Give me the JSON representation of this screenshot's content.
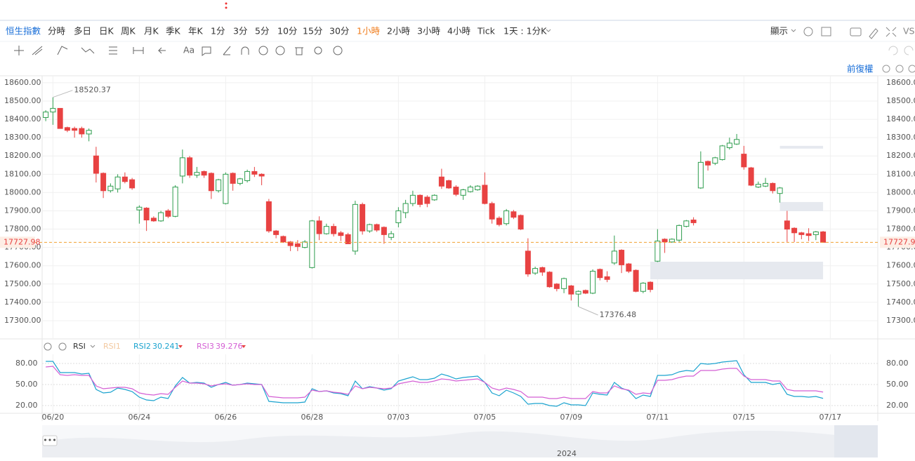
{
  "toolbar": {
    "symbol": "恒生指數",
    "periods": [
      "分時",
      "多日",
      "日K",
      "周K",
      "月K",
      "季K",
      "年K",
      "1分",
      "3分",
      "5分",
      "10分",
      "15分",
      "30分",
      "1小時",
      "2小時",
      "3小時",
      "4小時",
      "Tick",
      "1天 : 1分K"
    ],
    "selected_period": 13,
    "display": "顯示",
    "compare": "VS",
    "adjust": "前復權",
    "navigator_year": "2024"
  },
  "chart_data": [
    {
      "type": "candlestick",
      "up_color": "#2e9d4e",
      "down_color": "#e84242",
      "open": [
        18410,
        18440,
        18460,
        18355,
        18350,
        18350,
        18320,
        18200,
        18105,
        18010,
        18020,
        18085,
        18070,
        17905,
        17915,
        17860,
        17845,
        17900,
        17870,
        18090,
        18190,
        18095,
        18115,
        18105,
        18010,
        17940,
        18105,
        18050,
        18065,
        18115,
        18100,
        17950,
        17790,
        17760,
        17730,
        17720,
        17700,
        17590,
        17845,
        17775,
        17815,
        17780,
        17770,
        17680,
        17935,
        17790,
        17825,
        17810,
        17755,
        17835,
        17890,
        17940,
        17985,
        17975,
        17960,
        18085,
        18065,
        18030,
        17985,
        18005,
        18015,
        18040,
        17940,
        17860,
        17830,
        17895,
        17875,
        17680,
        17560,
        17590,
        17565,
        17500,
        17475,
        17490,
        17445,
        17465,
        17450,
        17580,
        17540,
        17615,
        17685,
        17610,
        17575,
        17460,
        17510,
        17625,
        17745,
        17730,
        17740,
        17815,
        17850,
        18025,
        18170,
        18160,
        18180,
        18245,
        18265,
        18210,
        18135,
        18030,
        18035,
        18050,
        17995,
        17845,
        17805,
        17780,
        17775,
        17770,
        17785
      ],
      "high": [
        18450,
        18520.37,
        18460,
        18360,
        18360,
        18360,
        18350,
        18250,
        18110,
        18050,
        18100,
        18110,
        18080,
        17930,
        17920,
        17870,
        17900,
        17910,
        18040,
        18235,
        18200,
        18140,
        18120,
        18110,
        18075,
        18110,
        18110,
        18080,
        18125,
        18140,
        18105,
        17965,
        17795,
        17765,
        17735,
        17740,
        17740,
        17850,
        17870,
        17830,
        17830,
        17790,
        17780,
        17955,
        17945,
        17830,
        17830,
        17815,
        17790,
        17920,
        17960,
        18010,
        17990,
        17985,
        17990,
        18130,
        18070,
        18040,
        18020,
        18040,
        18040,
        18110,
        17950,
        17870,
        17910,
        17905,
        17880,
        17750,
        17595,
        17595,
        17570,
        17505,
        17535,
        17495,
        17465,
        17470,
        17580,
        17585,
        17570,
        17765,
        17690,
        17615,
        17580,
        17510,
        17515,
        17800,
        17750,
        17750,
        17825,
        17850,
        17865,
        18225,
        18175,
        18195,
        18260,
        18300,
        18320,
        18255,
        18140,
        18060,
        18080,
        18055,
        18030,
        17900,
        17810,
        17785,
        17805,
        17790,
        17790
      ],
      "low": [
        18390,
        18370,
        18350,
        18330,
        18300,
        18300,
        18280,
        18055,
        17970,
        18000,
        18000,
        18050,
        18015,
        17830,
        17790,
        17840,
        17840,
        17860,
        17865,
        18050,
        18080,
        18080,
        18080,
        17965,
        18000,
        17935,
        18010,
        18040,
        18055,
        18085,
        18040,
        17780,
        17750,
        17725,
        17680,
        17680,
        17695,
        17585,
        17740,
        17770,
        17760,
        17735,
        17720,
        17660,
        17770,
        17780,
        17785,
        17720,
        17740,
        17810,
        17860,
        17925,
        17920,
        17920,
        17955,
        18020,
        18020,
        17980,
        17960,
        18000,
        18010,
        17935,
        17830,
        17815,
        17820,
        17855,
        17795,
        17540,
        17550,
        17545,
        17480,
        17460,
        17450,
        17410,
        17376.48,
        17445,
        17445,
        17520,
        17510,
        17605,
        17560,
        17560,
        17455,
        17450,
        17455,
        17620,
        17670,
        17725,
        17730,
        17810,
        17820,
        18020,
        18120,
        18150,
        18175,
        18235,
        18260,
        18125,
        18035,
        18025,
        18030,
        17995,
        17945,
        17730,
        17730,
        17745,
        17735,
        17740,
        17725
      ],
      "close": [
        18440,
        18460,
        18350,
        18340,
        18340,
        18320,
        18340,
        18105,
        18010,
        18035,
        18085,
        18060,
        18025,
        17920,
        17850,
        17845,
        17890,
        17870,
        18030,
        18190,
        18095,
        18110,
        18095,
        18010,
        18070,
        18100,
        18050,
        18075,
        18115,
        18100,
        18090,
        17790,
        17770,
        17730,
        17710,
        17705,
        17730,
        17845,
        17775,
        17815,
        17775,
        17765,
        17720,
        17935,
        17790,
        17825,
        17795,
        17770,
        17775,
        17900,
        17940,
        17985,
        17935,
        17940,
        17985,
        18035,
        18025,
        17990,
        18015,
        18030,
        18035,
        17940,
        17855,
        17825,
        17900,
        17865,
        17800,
        17555,
        17585,
        17565,
        17485,
        17475,
        17530,
        17445,
        17460,
        17450,
        17570,
        17535,
        17525,
        17680,
        17605,
        17570,
        17460,
        17505,
        17470,
        17735,
        17730,
        17745,
        17820,
        17845,
        17835,
        18165,
        18150,
        18190,
        18255,
        18270,
        18290,
        18140,
        18040,
        18045,
        18050,
        18010,
        18025,
        17800,
        17780,
        17770,
        17765,
        17785,
        17727.98
      ],
      "zones": [
        {
          "start": 102,
          "low": 18240,
          "high": 18255
        },
        {
          "start": 102,
          "low": 17898,
          "high": 17948
        },
        {
          "start": 84,
          "low": 17526,
          "high": 17622
        }
      ],
      "ylim": [
        17204,
        18638
      ],
      "yticks": [
        {
          "value": 17300,
          "label": "17300.00"
        },
        {
          "value": 17400,
          "label": "17400.00"
        },
        {
          "value": 17500,
          "label": "17500.00"
        },
        {
          "value": 17600,
          "label": "17600.00"
        },
        {
          "value": 17700,
          "label": "17700.00"
        },
        {
          "value": 17800,
          "label": "17800.00"
        },
        {
          "value": 17900,
          "label": "17900.00"
        },
        {
          "value": 18000,
          "label": "18000.00"
        },
        {
          "value": 18100,
          "label": "18100.00"
        },
        {
          "value": 18200,
          "label": "18200.00"
        },
        {
          "value": 18300,
          "label": "18300.00"
        },
        {
          "value": 18400,
          "label": "18400.00"
        },
        {
          "value": 18500,
          "label": "18500.00"
        },
        {
          "value": 18600,
          "label": "18600.00"
        }
      ],
      "xlim": [
        -0.5,
        115.6
      ],
      "xticks": [
        {
          "value": 1,
          "label": "06/20"
        },
        {
          "value": 13,
          "label": "06/24"
        },
        {
          "value": 25,
          "label": "06/26"
        },
        {
          "value": 37,
          "label": "06/28"
        },
        {
          "value": 49,
          "label": "07/03"
        },
        {
          "value": 61,
          "label": "07/05"
        },
        {
          "value": 73,
          "label": "07/09"
        },
        {
          "value": 85,
          "label": "07/11"
        },
        {
          "value": 97,
          "label": "07/15"
        },
        {
          "value": 109,
          "label": "07/17"
        }
      ],
      "grid": true
    },
    {
      "type": "line",
      "title": "RSI",
      "hidden_series": "RSI1",
      "series": [
        {
          "name": "RSI2",
          "color": "#1ba3cf",
          "values": [
            83,
            83,
            67,
            67,
            67,
            65,
            66,
            43,
            38,
            39,
            45,
            43,
            40,
            32,
            28,
            27,
            32,
            30,
            48,
            60,
            52,
            53,
            52,
            46,
            50,
            53,
            49,
            50,
            52,
            51,
            50,
            26,
            25,
            24,
            24,
            24,
            25,
            44,
            40,
            41,
            38,
            37,
            34,
            55,
            44,
            47,
            45,
            42,
            44,
            55,
            58,
            61,
            57,
            57,
            59,
            65,
            62,
            58,
            60,
            61,
            62,
            53,
            38,
            34,
            42,
            38,
            33,
            22,
            23,
            23,
            20,
            19,
            24,
            21,
            21,
            20,
            38,
            36,
            35,
            53,
            45,
            41,
            30,
            35,
            33,
            63,
            63,
            64,
            68,
            70,
            69,
            80,
            79,
            80,
            82,
            83,
            84,
            64,
            53,
            53,
            53,
            50,
            52,
            36,
            33,
            33,
            32,
            33,
            30.241
          ]
        },
        {
          "name": "RSI3",
          "color": "#d45fd4",
          "values": [
            75,
            76,
            64,
            63,
            64,
            63,
            63,
            48,
            44,
            45,
            46,
            46,
            44,
            38,
            36,
            35,
            37,
            36,
            46,
            55,
            52,
            52,
            51,
            48,
            50,
            51,
            49,
            50,
            51,
            50,
            50,
            33,
            32,
            31,
            31,
            31,
            32,
            42,
            40,
            41,
            39,
            38,
            36,
            48,
            44,
            46,
            45,
            44,
            45,
            51,
            53,
            55,
            53,
            53,
            55,
            58,
            57,
            55,
            56,
            57,
            58,
            53,
            45,
            42,
            45,
            43,
            40,
            32,
            32,
            32,
            30,
            30,
            32,
            30,
            30,
            30,
            40,
            38,
            38,
            48,
            44,
            42,
            36,
            38,
            37,
            56,
            56,
            57,
            60,
            62,
            62,
            70,
            70,
            70,
            72,
            73,
            73,
            62,
            57,
            57,
            57,
            55,
            55,
            43,
            41,
            41,
            41,
            41,
            39.276
          ]
        }
      ],
      "ylim": [
        10,
        93
      ],
      "yticks": [
        {
          "value": 20,
          "label": "20.00"
        },
        {
          "value": 50,
          "label": "50.00"
        },
        {
          "value": 80,
          "label": "80.00"
        }
      ],
      "grid": true
    }
  ]
}
